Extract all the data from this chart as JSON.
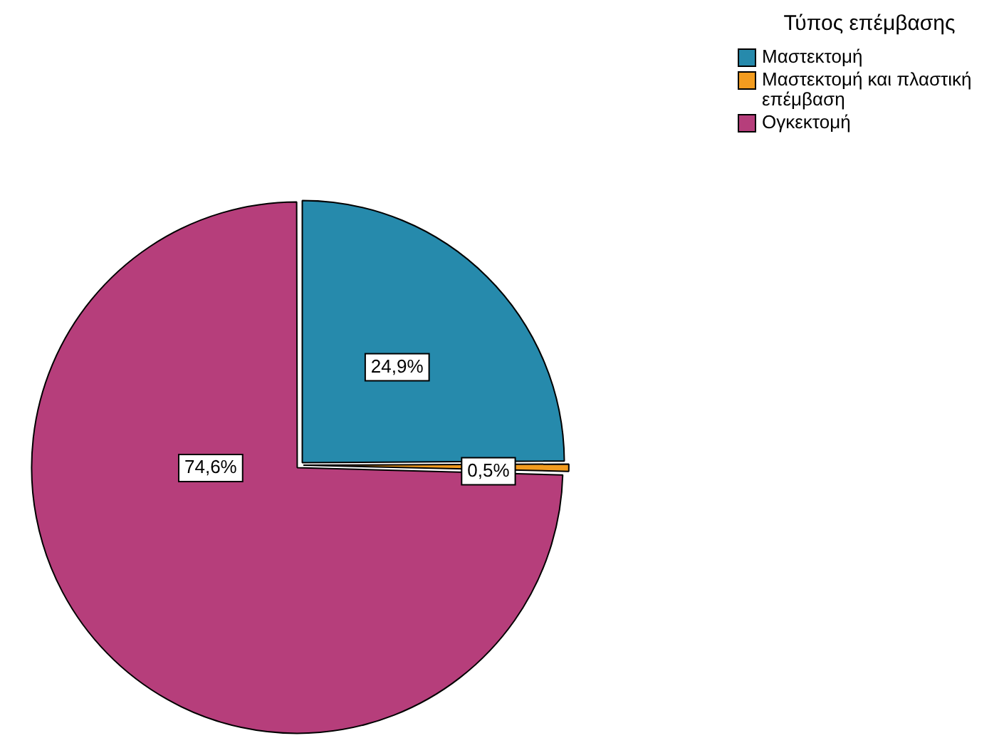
{
  "chart_data": {
    "type": "pie",
    "legend_title": "Τύπος επέμβασης",
    "legend": "top right",
    "categories": [
      "Μαστεκτομή",
      "Μαστεκτομή και πλαστική επέμβαση",
      "Ογκεκτομή"
    ],
    "values": [
      24.9,
      0.5,
      74.6
    ],
    "colors": [
      "#268aac",
      "#f39c1f",
      "#b63e7b"
    ],
    "value_labels": [
      "24,9%",
      "0,5%",
      "74,6%"
    ]
  }
}
